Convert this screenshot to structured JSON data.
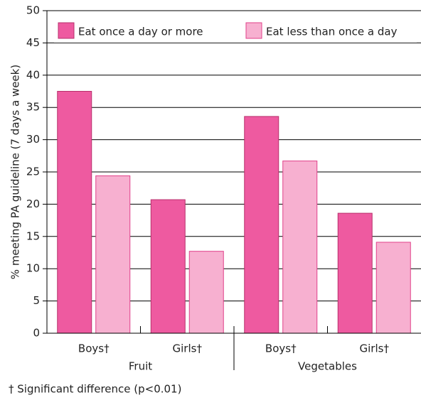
{
  "chart_data": {
    "type": "bar",
    "y_label": "% meeting PA guideline (7 days a week)",
    "categories": [
      "Boys†",
      "Girls†",
      "Boys†",
      "Girls†"
    ],
    "group_labels": [
      "Fruit",
      "Vegetables"
    ],
    "series": [
      {
        "name": "Eat once a day or more",
        "color": "#ee5aa0",
        "values": [
          37.5,
          20.7,
          33.6,
          18.6
        ]
      },
      {
        "name": "Eat less than once a day",
        "color": "#f7b0d0",
        "values": [
          24.4,
          12.7,
          26.7,
          14.1
        ]
      }
    ],
    "ylim": [
      0,
      50
    ],
    "yticks": [
      0,
      5,
      10,
      15,
      20,
      25,
      30,
      35,
      40,
      45,
      50
    ],
    "grid": true,
    "legend": "top",
    "footnote": "† Significant difference (p<0.01)"
  }
}
